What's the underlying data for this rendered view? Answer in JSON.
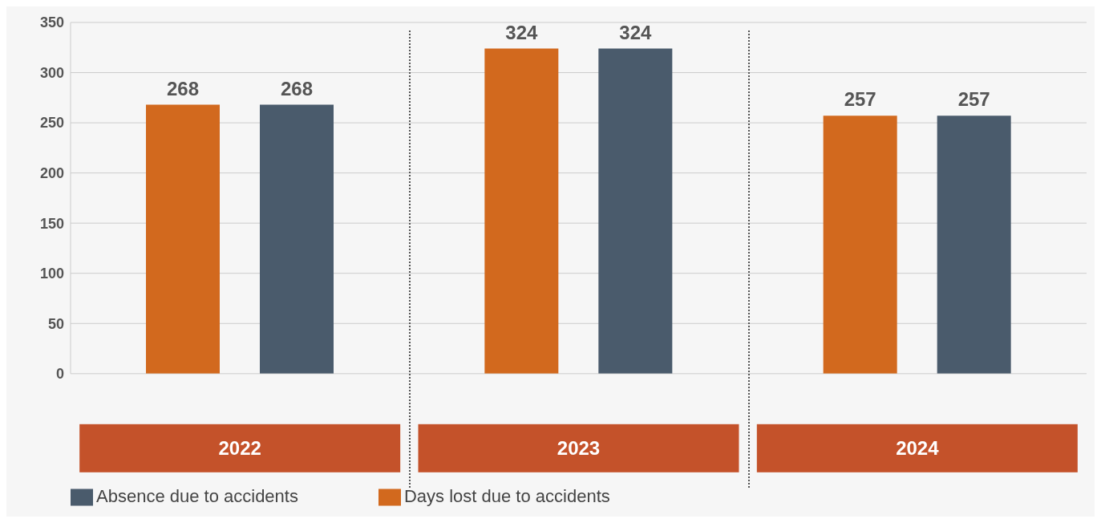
{
  "chart_data": {
    "type": "bar",
    "categories": [
      "2022",
      "2023",
      "2024"
    ],
    "series": [
      {
        "name": "Days lost due to accidents",
        "color": "#d2691e",
        "values": [
          268,
          324,
          257
        ]
      },
      {
        "name": "Absence due to accidents",
        "color": "#4a5b6c",
        "values": [
          268,
          324,
          257
        ]
      }
    ],
    "ylim": [
      0,
      350
    ],
    "yticks": [
      0,
      50,
      100,
      150,
      200,
      250,
      300,
      350
    ],
    "grid": "y",
    "data_labels": true,
    "legend": "bottom left"
  }
}
